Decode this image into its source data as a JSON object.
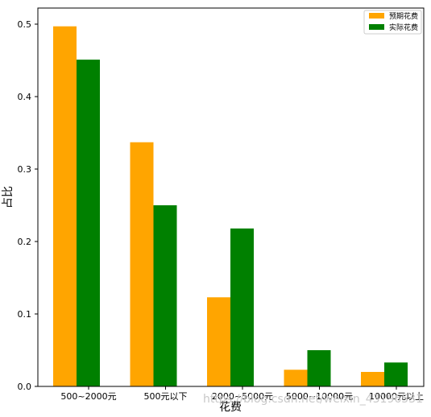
{
  "chart_data": {
    "type": "bar",
    "categories": [
      "500~2000元",
      "500元以下",
      "2000~5000元",
      "5000~10000元",
      "10000元以上"
    ],
    "series": [
      {
        "name": "预期花费",
        "color": "#FFA500",
        "values": [
          0.497,
          0.337,
          0.123,
          0.023,
          0.02
        ]
      },
      {
        "name": "实际花费",
        "color": "#008000",
        "values": [
          0.451,
          0.25,
          0.218,
          0.05,
          0.033
        ]
      }
    ],
    "xlabel": "花费",
    "ylabel": "占比",
    "ylim": [
      0,
      0.52
    ],
    "yticks": [
      0.0,
      0.1,
      0.2,
      0.3,
      0.4,
      0.5
    ],
    "ytick_labels": [
      "0.0",
      "0.1",
      "0.2",
      "0.3",
      "0.4",
      "0.5"
    ],
    "legend_placement": "top-right",
    "grid": false
  },
  "watermark": "https://blog.csdn.net/weixin_43196531"
}
